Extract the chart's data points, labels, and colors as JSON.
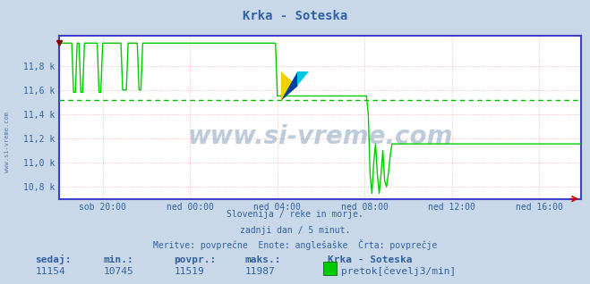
{
  "title": "Krka - Soteska",
  "bg_color": "#c8d8e8",
  "plot_bg_color": "#ffffff",
  "line_color": "#00cc00",
  "avg_line_color": "#00bb00",
  "avg_value": 11519,
  "min_value": 10745,
  "max_value": 11987,
  "sedaj_value": 11154,
  "ylim_low": 10700,
  "ylim_high": 12050,
  "yticks": [
    10800,
    11000,
    11200,
    11400,
    11600,
    11800
  ],
  "ytick_labels": [
    "10,8 k",
    "11,0 k",
    "11,2 k",
    "11,4 k",
    "11,6 k",
    "11,8 k"
  ],
  "xlabel_ticks": [
    "sob 20:00",
    "ned 00:00",
    "ned 04:00",
    "ned 08:00",
    "ned 12:00",
    "ned 16:00"
  ],
  "grid_color": "#ffaaaa",
  "text_color": "#3060a0",
  "axis_color": "#4040cc",
  "watermark": "www.si-vreme.com",
  "sub_text1": "Slovenija / reke in morje.",
  "sub_text2": "zadnji dan / 5 minut.",
  "sub_text3": "Meritve: povprečne  Enote: anglešaške  Črta: povprečje",
  "legend_title": "Krka - Soteska",
  "legend_label": "pretok[čevelj3/min]",
  "footer_labels": [
    "sedaj:",
    "min.:",
    "povpr.:",
    "maks.:"
  ],
  "footer_values": [
    "11154",
    "10745",
    "11519",
    "11987"
  ],
  "num_points": 288,
  "tick_positions": [
    24,
    72,
    120,
    168,
    216,
    264
  ]
}
